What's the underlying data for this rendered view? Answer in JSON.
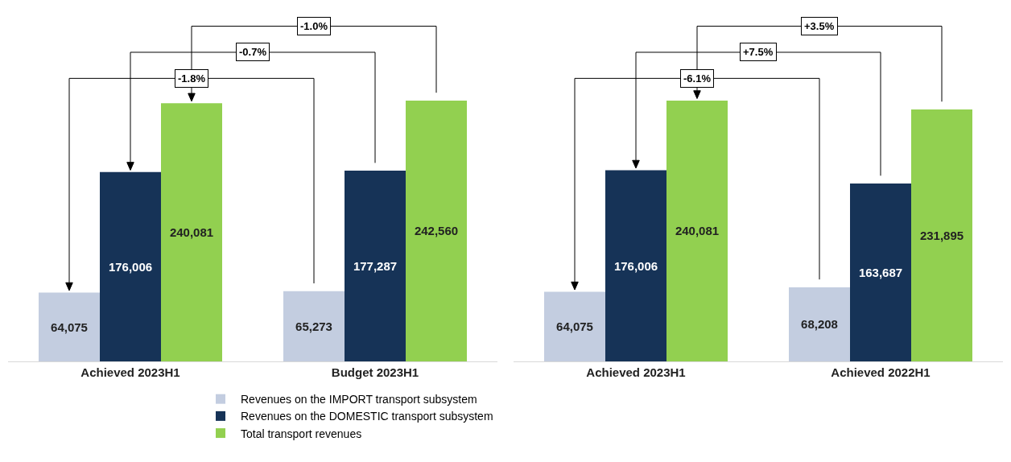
{
  "chart_data": [
    {
      "type": "bar",
      "categories": [
        "Achieved 2023H1",
        "Budget 2023H1"
      ],
      "series": [
        {
          "name": "Revenues on the IMPORT transport subsystem",
          "color": "#c3cde0",
          "values": [
            64075,
            65273
          ],
          "value_labels": [
            "64,075",
            "65,273"
          ]
        },
        {
          "name": "Revenues on the DOMESTIC transport subsystem",
          "color": "#163357",
          "values": [
            176006,
            177287
          ],
          "value_labels": [
            "176,006",
            "177,287"
          ]
        },
        {
          "name": "Total transport revenues",
          "color": "#92d050",
          "values": [
            240081,
            242560
          ],
          "value_labels": [
            "240,081",
            "242,560"
          ]
        }
      ],
      "legend": "bottom",
      "annotations": [
        "-1.8%",
        "-0.7%",
        "-1.0%"
      ]
    },
    {
      "type": "bar",
      "categories": [
        "Achieved 2023H1",
        "Achieved 2022H1"
      ],
      "series": [
        {
          "color": "#c3cde0",
          "values": [
            64075,
            68208
          ],
          "value_labels": [
            "64,075",
            "68,208"
          ]
        },
        {
          "color": "#163357",
          "values": [
            176006,
            163687
          ],
          "value_labels": [
            "176,006",
            "163,687"
          ]
        },
        {
          "color": "#92d050",
          "values": [
            240081,
            231895
          ],
          "value_labels": [
            "240,081",
            "231,895"
          ]
        }
      ],
      "annotations": [
        "-6.1%",
        "+7.5%",
        "+3.5%"
      ]
    }
  ]
}
